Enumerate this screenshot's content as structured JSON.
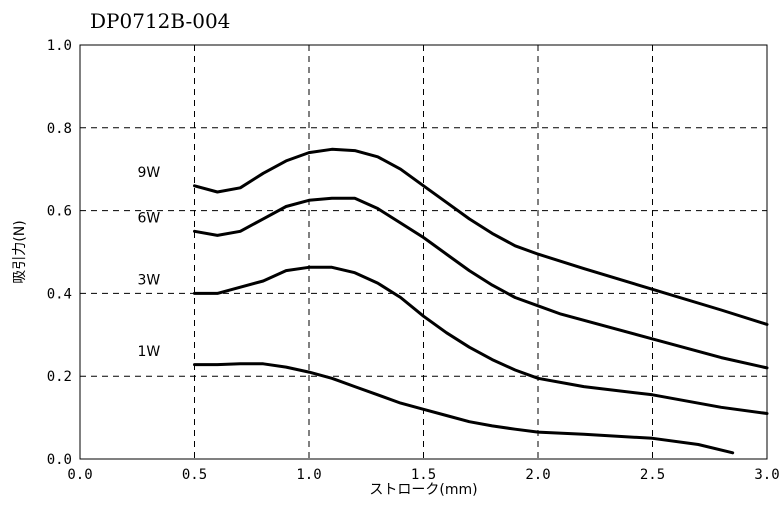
{
  "chart_data": {
    "type": "line",
    "title": "DP0712B-004",
    "xlabel": "ストローク(mm)",
    "ylabel": "吸引力(N)",
    "xlim": [
      0.0,
      3.0
    ],
    "ylim": [
      0.0,
      1.0
    ],
    "x_ticks": [
      "0.0",
      "0.5",
      "1.0",
      "1.5",
      "2.0",
      "2.5",
      "3.0"
    ],
    "y_ticks": [
      "0.0",
      "0.2",
      "0.4",
      "0.6",
      "0.8",
      "1.0"
    ],
    "grid": true,
    "series": [
      {
        "name": "9W",
        "x": [
          0.5,
          0.6,
          0.7,
          0.8,
          0.9,
          1.0,
          1.1,
          1.2,
          1.3,
          1.4,
          1.5,
          1.6,
          1.7,
          1.8,
          1.9,
          2.0,
          2.2,
          2.5,
          2.8,
          3.0
        ],
        "y": [
          0.66,
          0.645,
          0.655,
          0.69,
          0.72,
          0.74,
          0.748,
          0.745,
          0.73,
          0.7,
          0.66,
          0.62,
          0.58,
          0.545,
          0.515,
          0.495,
          0.46,
          0.41,
          0.36,
          0.325
        ]
      },
      {
        "name": "6W",
        "x": [
          0.5,
          0.6,
          0.7,
          0.8,
          0.9,
          1.0,
          1.1,
          1.2,
          1.3,
          1.4,
          1.5,
          1.6,
          1.7,
          1.8,
          1.9,
          2.0,
          2.1,
          2.5,
          2.8,
          3.0
        ],
        "y": [
          0.55,
          0.54,
          0.55,
          0.58,
          0.61,
          0.625,
          0.63,
          0.63,
          0.605,
          0.57,
          0.535,
          0.495,
          0.455,
          0.42,
          0.39,
          0.37,
          0.35,
          0.29,
          0.245,
          0.22
        ]
      },
      {
        "name": "3W",
        "x": [
          0.5,
          0.6,
          0.7,
          0.8,
          0.9,
          1.0,
          1.1,
          1.2,
          1.3,
          1.4,
          1.5,
          1.6,
          1.7,
          1.8,
          1.9,
          2.0,
          2.2,
          2.5,
          2.8,
          3.0
        ],
        "y": [
          0.4,
          0.4,
          0.415,
          0.43,
          0.455,
          0.463,
          0.463,
          0.45,
          0.425,
          0.39,
          0.345,
          0.305,
          0.27,
          0.24,
          0.215,
          0.195,
          0.175,
          0.155,
          0.125,
          0.11
        ]
      },
      {
        "name": "1W",
        "x": [
          0.5,
          0.6,
          0.7,
          0.8,
          0.9,
          1.0,
          1.1,
          1.2,
          1.3,
          1.4,
          1.5,
          1.6,
          1.7,
          1.8,
          1.9,
          2.0,
          2.2,
          2.5,
          2.7,
          2.85
        ],
        "y": [
          0.228,
          0.228,
          0.23,
          0.23,
          0.222,
          0.21,
          0.195,
          0.175,
          0.155,
          0.135,
          0.12,
          0.105,
          0.09,
          0.08,
          0.072,
          0.065,
          0.06,
          0.05,
          0.035,
          0.015
        ]
      }
    ]
  }
}
